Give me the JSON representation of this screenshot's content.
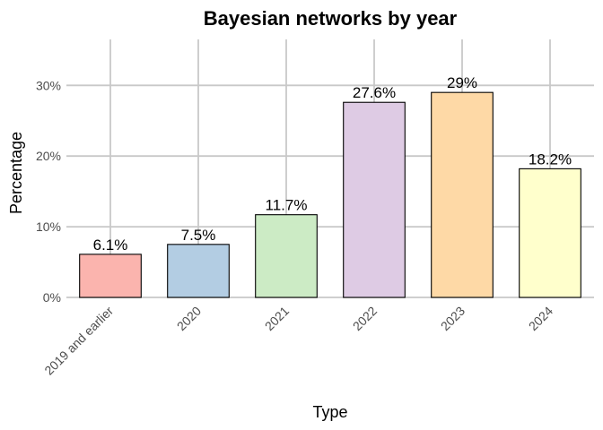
{
  "chart_data": {
    "type": "bar",
    "title": "Bayesian networks by year",
    "xlabel": "Type",
    "ylabel": "Percentage",
    "categories": [
      "2019 and earlier",
      "2020",
      "2021",
      "2022",
      "2023",
      "2024"
    ],
    "values": [
      6.1,
      7.5,
      11.7,
      27.6,
      29,
      18.2
    ],
    "data_labels": [
      "6.1%",
      "7.5%",
      "11.7%",
      "27.6%",
      "29%",
      "18.2%"
    ],
    "colors": [
      "#FBB4AE",
      "#B3CDE3",
      "#CCEBC5",
      "#DECBE4",
      "#FED9A6",
      "#FFFFCC"
    ],
    "ylim": [
      0,
      36.5
    ],
    "yticks": [
      0,
      10,
      20,
      30
    ],
    "ytick_labels": [
      "0%",
      "10%",
      "20%",
      "30%"
    ],
    "grid": true,
    "legend": "none",
    "bar_outline_color": "#000000",
    "grid_color": "#C8C8C8"
  }
}
